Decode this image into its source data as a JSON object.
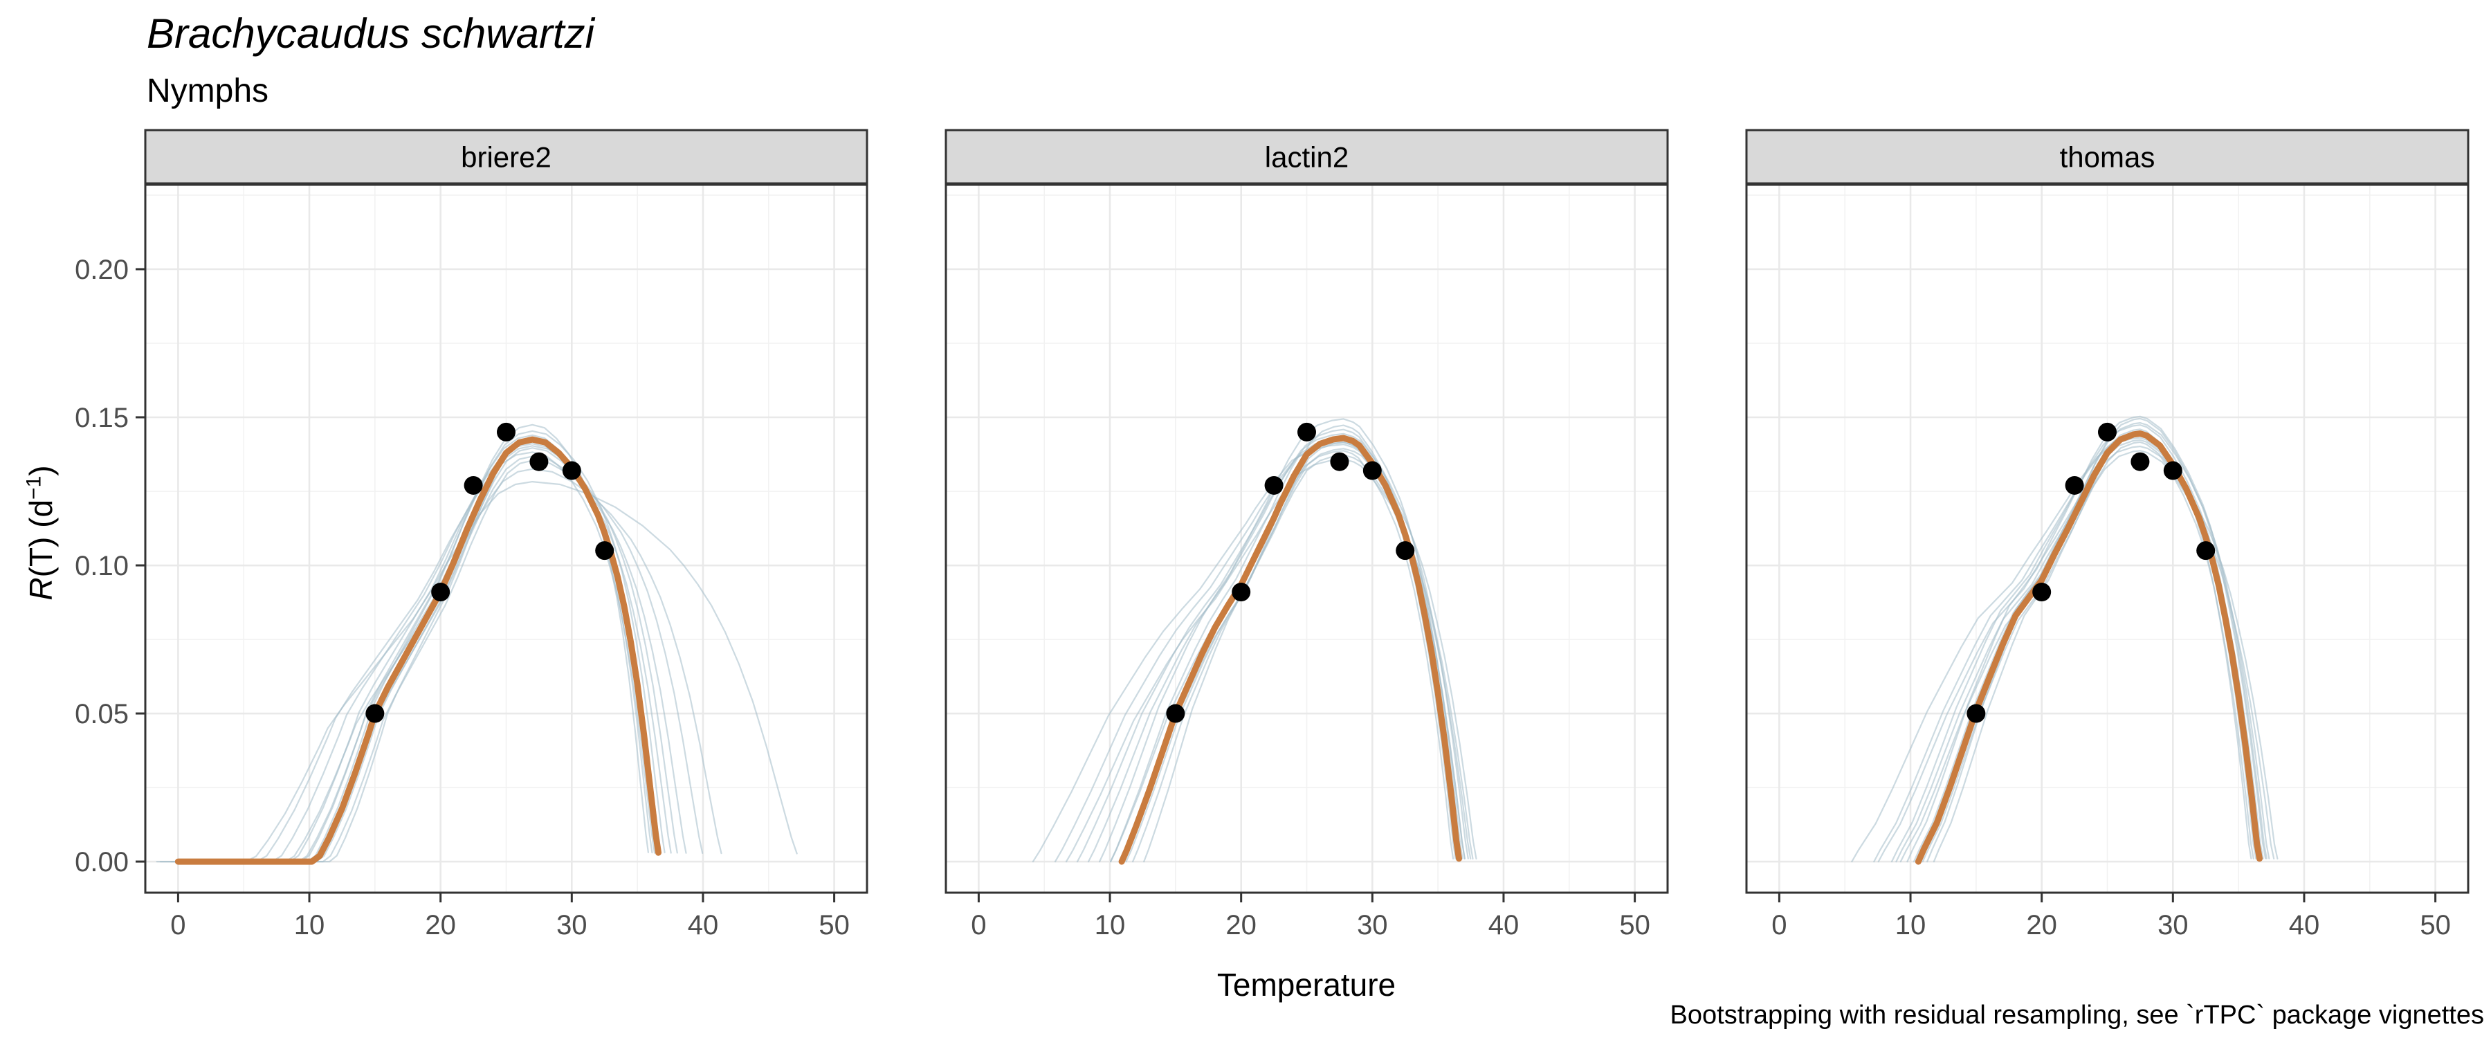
{
  "header": {
    "title": "Brachycaudus schwartzi",
    "subtitle": "Nymphs"
  },
  "caption": "Bootstrapping with residual resampling, see `rTPC` package vignettes",
  "chart_data": {
    "type": "line",
    "title": "Brachycaudus schwartzi",
    "subtitle": "Nymphs",
    "xlabel": "Temperature",
    "ylabel": "R(T) (d−1)",
    "ylabel_parts": [
      {
        "t": "R",
        "italic": true
      },
      {
        "t": "(T) (d"
      },
      {
        "t": "−1",
        "sup": true
      },
      {
        "t": ")"
      }
    ],
    "legend": "none",
    "grid": true,
    "xlim": [
      -2.5,
      52.5
    ],
    "ylim": [
      -0.0105,
      0.2285
    ],
    "x_ticks": [
      0,
      10,
      20,
      30,
      40,
      50
    ],
    "x_minor": [
      5,
      15,
      25,
      35,
      45
    ],
    "y_ticks": [
      {
        "v": 0.0,
        "label": "0.00"
      },
      {
        "v": 0.05,
        "label": "0.05"
      },
      {
        "v": 0.1,
        "label": "0.10"
      },
      {
        "v": 0.15,
        "label": "0.15"
      },
      {
        "v": 0.2,
        "label": "0.20"
      }
    ],
    "y_minor": [
      0.025,
      0.075,
      0.125,
      0.175,
      0.225
    ],
    "observed_points": {
      "temperature": [
        15,
        20,
        22.5,
        25,
        27.5,
        30,
        32.5
      ],
      "rate": [
        0.05,
        0.091,
        0.127,
        0.145,
        0.135,
        0.132,
        0.105
      ]
    },
    "facets": [
      {
        "label": "briere2",
        "fit": [
          [
            0,
            0
          ],
          [
            10.2,
            0
          ],
          [
            10.8,
            0.002
          ],
          [
            11.5,
            0.008
          ],
          [
            12.5,
            0.018
          ],
          [
            13.5,
            0.03
          ],
          [
            14.5,
            0.043
          ],
          [
            15,
            0.05
          ],
          [
            16,
            0.059
          ],
          [
            17,
            0.067
          ],
          [
            18,
            0.075
          ],
          [
            19,
            0.083
          ],
          [
            20,
            0.091
          ],
          [
            21,
            0.101
          ],
          [
            22,
            0.112
          ],
          [
            23,
            0.122
          ],
          [
            24,
            0.131
          ],
          [
            25,
            0.138
          ],
          [
            26,
            0.1415
          ],
          [
            27,
            0.1425
          ],
          [
            28,
            0.1415
          ],
          [
            29,
            0.138
          ],
          [
            30,
            0.133
          ],
          [
            31,
            0.126
          ],
          [
            32,
            0.117
          ],
          [
            32.5,
            0.111
          ],
          [
            33,
            0.104
          ],
          [
            33.5,
            0.096
          ],
          [
            34,
            0.086
          ],
          [
            34.5,
            0.074
          ],
          [
            35,
            0.06
          ],
          [
            35.5,
            0.043
          ],
          [
            36,
            0.024
          ],
          [
            36.4,
            0.009
          ],
          [
            36.6,
            0.003
          ]
        ],
        "bootstraps": [
          {
            "sxl": 1.25,
            "sxr": 0.97,
            "sy": 0.97
          },
          {
            "sxl": 1.18,
            "sxr": 1.02,
            "sy": 0.99
          },
          {
            "sxl": 1.1,
            "sxr": 0.95,
            "sy": 1.01
          },
          {
            "sxl": 1.05,
            "sxr": 1.05,
            "sy": 1.02
          },
          {
            "sxl": 0.98,
            "sxr": 1.1,
            "sy": 0.98
          },
          {
            "sxl": 1.0,
            "sxr": 1.22,
            "sy": 0.96
          },
          {
            "sxl": 0.95,
            "sxr": 1.35,
            "sy": 0.95
          },
          {
            "sxl": 1.12,
            "sxr": 1.5,
            "sy": 0.93
          },
          {
            "sxl": 1.3,
            "sxr": 2.1,
            "sy": 0.9
          },
          {
            "sxl": 1.02,
            "sxr": 0.92,
            "sy": 1.035
          },
          {
            "sxl": 0.92,
            "sxr": 1.0,
            "sy": 1.0
          },
          {
            "sxl": 1.06,
            "sxr": 1.15,
            "sy": 0.985
          }
        ]
      },
      {
        "label": "lactin2",
        "fit": [
          [
            10.9,
            0
          ],
          [
            11.3,
            0.004
          ],
          [
            12,
            0.012
          ],
          [
            13,
            0.024
          ],
          [
            14,
            0.037
          ],
          [
            15,
            0.05
          ],
          [
            16,
            0.06
          ],
          [
            17,
            0.07
          ],
          [
            18,
            0.079
          ],
          [
            19,
            0.0865
          ],
          [
            20,
            0.0935
          ],
          [
            21,
            0.1025
          ],
          [
            22,
            0.1115
          ],
          [
            22.5,
            0.116
          ],
          [
            23,
            0.121
          ],
          [
            24,
            0.13
          ],
          [
            25,
            0.1375
          ],
          [
            26,
            0.141
          ],
          [
            27,
            0.1425
          ],
          [
            27.8,
            0.143
          ],
          [
            28.5,
            0.142
          ],
          [
            29,
            0.1405
          ],
          [
            30,
            0.1345
          ],
          [
            31,
            0.127
          ],
          [
            32,
            0.117
          ],
          [
            32.5,
            0.1105
          ],
          [
            33,
            0.103
          ],
          [
            33.5,
            0.094
          ],
          [
            34,
            0.083
          ],
          [
            34.5,
            0.071
          ],
          [
            35,
            0.057
          ],
          [
            35.5,
            0.041
          ],
          [
            36,
            0.023
          ],
          [
            36.4,
            0.007
          ],
          [
            36.6,
            0.001
          ]
        ],
        "bootstraps": [
          {
            "sxl": 1.3,
            "sxr": 0.97,
            "sy": 0.99
          },
          {
            "sxl": 1.2,
            "sxr": 1.0,
            "sy": 1.0
          },
          {
            "sxl": 1.1,
            "sxr": 1.03,
            "sy": 1.045
          },
          {
            "sxl": 1.05,
            "sxr": 0.95,
            "sy": 0.97
          },
          {
            "sxl": 0.95,
            "sxr": 1.05,
            "sy": 0.99
          },
          {
            "sxl": 1.0,
            "sxr": 1.1,
            "sy": 0.96
          },
          {
            "sxl": 1.15,
            "sxr": 1.08,
            "sy": 1.01
          },
          {
            "sxl": 0.9,
            "sxr": 0.98,
            "sy": 1.03
          },
          {
            "sxl": 1.25,
            "sxr": 1.12,
            "sy": 0.95
          },
          {
            "sxl": 1.05,
            "sxr": 1.0,
            "sy": 1.02
          },
          {
            "sxl": 0.98,
            "sxr": 1.15,
            "sy": 0.975
          },
          {
            "sxl": 1.4,
            "sxr": 1.05,
            "sy": 0.985
          }
        ]
      },
      {
        "label": "thomas",
        "fit": [
          [
            10.6,
            0
          ],
          [
            11,
            0.004
          ],
          [
            12,
            0.013
          ],
          [
            13,
            0.025
          ],
          [
            14,
            0.038
          ],
          [
            15,
            0.051
          ],
          [
            16,
            0.062
          ],
          [
            17,
            0.073
          ],
          [
            18,
            0.083
          ],
          [
            19,
            0.089
          ],
          [
            20,
            0.095
          ],
          [
            21,
            0.104
          ],
          [
            22,
            0.1125
          ],
          [
            22.5,
            0.117
          ],
          [
            23,
            0.1215
          ],
          [
            24,
            0.1305
          ],
          [
            25,
            0.138
          ],
          [
            26,
            0.1425
          ],
          [
            27,
            0.1442
          ],
          [
            27.5,
            0.1445
          ],
          [
            28,
            0.1438
          ],
          [
            29,
            0.1405
          ],
          [
            30,
            0.134
          ],
          [
            31,
            0.126
          ],
          [
            32,
            0.116
          ],
          [
            32.5,
            0.1095
          ],
          [
            33,
            0.102
          ],
          [
            33.5,
            0.093
          ],
          [
            34,
            0.082
          ],
          [
            34.5,
            0.07
          ],
          [
            35,
            0.056
          ],
          [
            35.5,
            0.04
          ],
          [
            36,
            0.022
          ],
          [
            36.4,
            0.006
          ],
          [
            36.6,
            0.001
          ]
        ],
        "bootstraps": [
          {
            "sxl": 1.2,
            "sxr": 0.97,
            "sy": 1.0
          },
          {
            "sxl": 1.12,
            "sxr": 1.02,
            "sy": 1.02
          },
          {
            "sxl": 1.05,
            "sxr": 1.06,
            "sy": 1.04
          },
          {
            "sxl": 0.98,
            "sxr": 0.95,
            "sy": 0.98
          },
          {
            "sxl": 0.93,
            "sxr": 1.03,
            "sy": 1.0
          },
          {
            "sxl": 1.08,
            "sxr": 1.12,
            "sy": 0.96
          },
          {
            "sxl": 1.3,
            "sxr": 1.0,
            "sy": 0.99
          },
          {
            "sxl": 1.0,
            "sxr": 1.08,
            "sy": 1.025
          },
          {
            "sxl": 1.18,
            "sxr": 1.15,
            "sy": 0.97
          },
          {
            "sxl": 1.02,
            "sxr": 0.93,
            "sy": 1.01
          },
          {
            "sxl": 0.96,
            "sxr": 1.05,
            "sy": 1.035
          },
          {
            "sxl": 1.1,
            "sxr": 1.0,
            "sy": 0.985
          }
        ]
      }
    ],
    "colors": {
      "fit_line": "#C97C3F",
      "bootstrap_line": "#A3BBC8",
      "points": "#000000",
      "grid_major": "#E9E9E9",
      "grid_minor": "#F2F2F2",
      "panel_border": "#333333",
      "strip_bg": "#D9D9D9",
      "tick_label": "#4D4D4D",
      "text": "#000000",
      "background": "#FFFFFF"
    }
  }
}
